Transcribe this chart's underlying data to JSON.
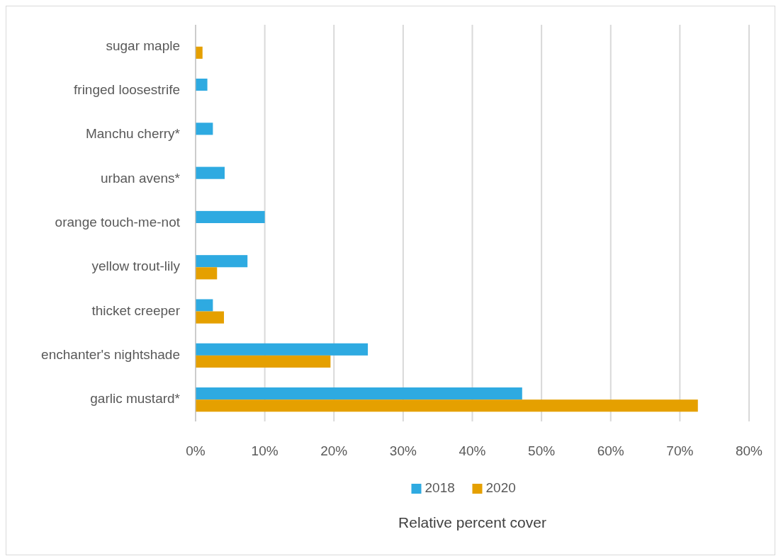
{
  "chart_data": {
    "type": "bar",
    "orientation": "horizontal",
    "xlabel": "Relative percent cover",
    "categories": [
      "sugar maple",
      "fringed loosestrife",
      "Manchu cherry*",
      "urban avens*",
      "orange touch-me-not",
      "yellow trout-lily",
      "thicket creeper",
      "enchanter's nightshade",
      "garlic mustard*"
    ],
    "series": [
      {
        "name": "2018",
        "color": "#2eaae1",
        "values": [
          null,
          1.7,
          2.5,
          4.2,
          10.0,
          7.5,
          2.5,
          24.9,
          47.2
        ]
      },
      {
        "name": "2020",
        "color": "#e5a000",
        "values": [
          1.0,
          null,
          null,
          null,
          null,
          3.1,
          4.1,
          19.5,
          72.6
        ]
      }
    ],
    "xlim": [
      0,
      80
    ],
    "xticks": [
      {
        "value": 0,
        "label": "0%"
      },
      {
        "value": 10,
        "label": "10%"
      },
      {
        "value": 20,
        "label": "20%"
      },
      {
        "value": 30,
        "label": "30%"
      },
      {
        "value": 40,
        "label": "40%"
      },
      {
        "value": 50,
        "label": "50%"
      },
      {
        "value": 60,
        "label": "60%"
      },
      {
        "value": 70,
        "label": "70%"
      },
      {
        "value": 80,
        "label": "80%"
      }
    ],
    "grid": "x",
    "legend": "bottom"
  }
}
